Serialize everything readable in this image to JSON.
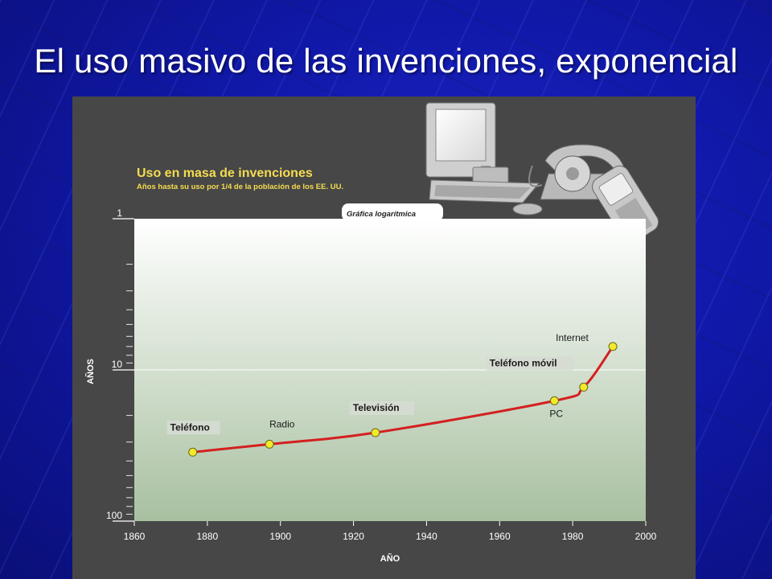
{
  "slide": {
    "title": "El uso masivo de las invenciones, exponencial"
  },
  "chart_data": {
    "type": "line",
    "title": "Uso en masa de invenciones",
    "subtitle": "Años hasta su uso por 1/4 de la población de los EE. UU.",
    "scale_note": "Gráfica logarítmica",
    "xlabel": "AÑO",
    "ylabel": "AÑOS",
    "xlim": [
      1860,
      2000
    ],
    "ylim": [
      1,
      100
    ],
    "y_scale": "log",
    "y_inverted": true,
    "xticks": [
      1860,
      1880,
      1900,
      1920,
      1940,
      1960,
      1980,
      2000
    ],
    "yticks": [
      1,
      10,
      100
    ],
    "grid_lines_y": [
      10
    ],
    "series": [
      {
        "color": "#d42020",
        "points": [
          {
            "x": 1876,
            "y": 35,
            "label": "Teléfono"
          },
          {
            "x": 1897,
            "y": 31,
            "label": "Radio"
          },
          {
            "x": 1926,
            "y": 26,
            "label": "Televisión"
          },
          {
            "x": 1975,
            "y": 16,
            "label": "PC"
          },
          {
            "x": 1983,
            "y": 13,
            "label": "Teléfono móvil"
          },
          {
            "x": 1991,
            "y": 7,
            "label": "Internet"
          }
        ]
      }
    ]
  },
  "colors": {
    "panel_bg": "#474747",
    "plot_top": "#ffffff",
    "plot_bottom": "#a8c0a0",
    "title": "#f5dc50",
    "marker": "#f2ea2a",
    "line": "#d42020"
  }
}
